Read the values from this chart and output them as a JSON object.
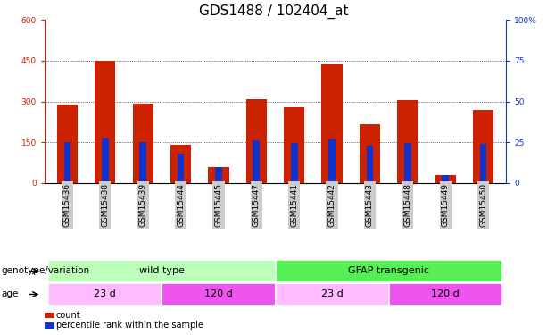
{
  "title": "GDS1488 / 102404_at",
  "samples": [
    "GSM15436",
    "GSM15438",
    "GSM15439",
    "GSM15444",
    "GSM15445",
    "GSM15447",
    "GSM15441",
    "GSM15442",
    "GSM15443",
    "GSM15448",
    "GSM15449",
    "GSM15450"
  ],
  "counts": [
    290,
    450,
    293,
    140,
    60,
    308,
    280,
    435,
    215,
    305,
    30,
    270
  ],
  "percentile_right_axis": [
    25,
    27.5,
    25,
    18,
    10,
    26,
    24.5,
    27,
    23,
    24.5,
    5,
    24
  ],
  "ylim_left": [
    0,
    600
  ],
  "ylim_right": [
    0,
    100
  ],
  "yticks_left": [
    0,
    150,
    300,
    450,
    600
  ],
  "yticks_right": [
    0,
    25,
    50,
    75,
    100
  ],
  "bar_color": "#cc2200",
  "percentile_color": "#1133cc",
  "bar_width": 0.55,
  "pct_bar_width": 0.18,
  "genotype_groups": [
    {
      "label": "wild type",
      "start": 0,
      "end": 5,
      "color": "#bbffbb"
    },
    {
      "label": "GFAP transgenic",
      "start": 6,
      "end": 11,
      "color": "#55ee55"
    }
  ],
  "age_groups": [
    {
      "label": "23 d",
      "start": 0,
      "end": 2,
      "color": "#ffbbff"
    },
    {
      "label": "120 d",
      "start": 3,
      "end": 5,
      "color": "#ee55ee"
    },
    {
      "label": "23 d",
      "start": 6,
      "end": 8,
      "color": "#ffbbff"
    },
    {
      "label": "120 d",
      "start": 9,
      "end": 11,
      "color": "#ee55ee"
    }
  ],
  "legend_count_label": "count",
  "legend_pct_label": "percentile rank within the sample",
  "xlabel_genotype": "genotype/variation",
  "xlabel_age": "age",
  "tick_bg_color": "#cccccc",
  "title_fontsize": 11,
  "tick_fontsize": 6.5,
  "label_fontsize": 8,
  "dotted_yticks": [
    150,
    300,
    450
  ]
}
